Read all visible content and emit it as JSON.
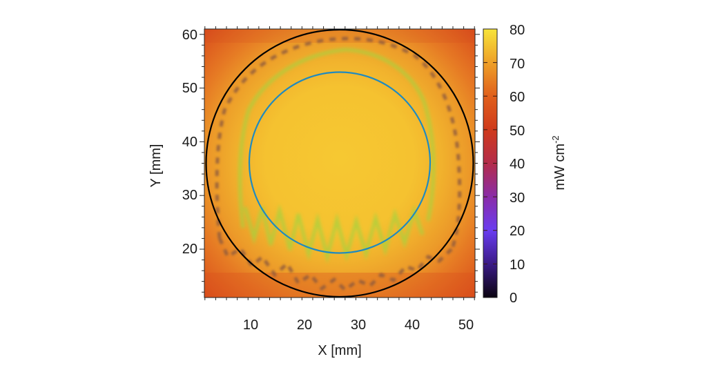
{
  "chart_data": {
    "type": "heatmap",
    "title": "",
    "xlabel": "X [mm]",
    "ylabel": "Y [mm]",
    "xlim": [
      1.4,
      51.6
    ],
    "ylim": [
      11,
      61
    ],
    "xticks": [
      10,
      20,
      30,
      40,
      50
    ],
    "yticks": [
      20,
      30,
      40,
      50,
      60
    ],
    "grid": false,
    "colorbar": {
      "label": "mW cm",
      "label_superscript": "-2",
      "range": [
        0,
        80
      ],
      "ticks": [
        0,
        10,
        20,
        30,
        40,
        50,
        60,
        70,
        80
      ],
      "colormap": "gnuplot-like (black-purple-red-orange-yellow)",
      "stops": [
        {
          "value": 0,
          "color": "#0b0410"
        },
        {
          "value": 10,
          "color": "#3a1a86"
        },
        {
          "value": 20,
          "color": "#6a3cf0"
        },
        {
          "value": 30,
          "color": "#8a2ca8"
        },
        {
          "value": 40,
          "color": "#b32c4a"
        },
        {
          "value": 50,
          "color": "#cf3a1c"
        },
        {
          "value": 60,
          "color": "#e0601c"
        },
        {
          "value": 70,
          "color": "#eea028"
        },
        {
          "value": 80,
          "color": "#f7e43a"
        }
      ]
    },
    "field_description": "Irradiance map: ~75 mW/cm2 plateau in center, falling to ~55 mW/cm2 at corners",
    "field_samples": {
      "center_value": 76,
      "mid_radius_value": 70,
      "edge_circle_value": 66,
      "corner_value": 55
    },
    "overlays": [
      {
        "name": "outer-boundary-circle",
        "shape": "circle",
        "center_mm": [
          26.6,
          36.1
        ],
        "radius_mm": 24.8,
        "color": "#000000",
        "style": "solid"
      },
      {
        "name": "inner-circle",
        "shape": "circle",
        "center_mm": [
          26.6,
          36.1
        ],
        "radius_mm": 16.8,
        "color": "#1f8ac0",
        "style": "solid"
      },
      {
        "name": "contour-60",
        "shape": "contour",
        "color": "#9a5a3a",
        "style": "dashed",
        "level": 60
      },
      {
        "name": "contour-75",
        "shape": "contour",
        "color": "#9ccf3a",
        "style": "fuzzy",
        "level": 75
      }
    ]
  },
  "axes": {
    "x_label": "X [mm]",
    "y_label": "Y [mm]",
    "x_ticks": [
      "10",
      "20",
      "30",
      "40",
      "50"
    ],
    "y_ticks": [
      "60",
      "50",
      "40",
      "30",
      "20"
    ],
    "cb_ticks": [
      "80",
      "70",
      "60",
      "50",
      "40",
      "30",
      "20",
      "10",
      "0"
    ],
    "cb_label": "mW cm",
    "cb_sup": "-2"
  },
  "colors": {
    "center": "#f6c832",
    "mid": "#f0b02e",
    "edge": "#eb8a26",
    "corner": "#d9481c",
    "outer_circle": "#000000",
    "inner_circle": "#1f8ac0",
    "contour_dashed": "#9a5a3a",
    "contour_green": "#9ccf3a"
  }
}
